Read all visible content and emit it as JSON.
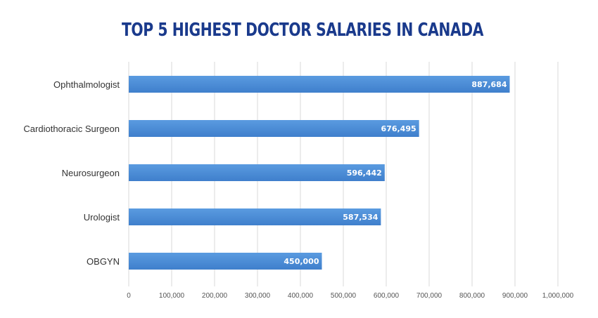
{
  "chart_data": {
    "type": "bar",
    "orientation": "horizontal",
    "title": "TOP 5 HIGHEST DOCTOR SALARIES IN CANADA",
    "categories": [
      "Ophthalmologist",
      "Cardiothoracic Surgeon",
      "Neurosurgeon",
      "Urologist",
      "OBGYN"
    ],
    "values": [
      887684,
      676495,
      596442,
      587534,
      450000
    ],
    "value_labels": [
      "887,684",
      "676,495",
      "596,442",
      "587,534",
      "450,000"
    ],
    "xlim": [
      0,
      1000000
    ],
    "xticks": [
      0,
      100000,
      200000,
      300000,
      400000,
      500000,
      600000,
      700000,
      800000,
      900000,
      1000000
    ],
    "xtick_labels": [
      "0",
      "100,000",
      "200,000",
      "300,000",
      "400,000",
      "500,000",
      "600,000",
      "700,000",
      "800,000",
      "900,000",
      "1,000,000"
    ],
    "xlabel": "",
    "ylabel": "",
    "grid": "vertical",
    "legend": "none",
    "bar_color": "#5a9be0",
    "bar_color_dark": "#3f7fcc",
    "title_color": "#1a3a8c"
  }
}
